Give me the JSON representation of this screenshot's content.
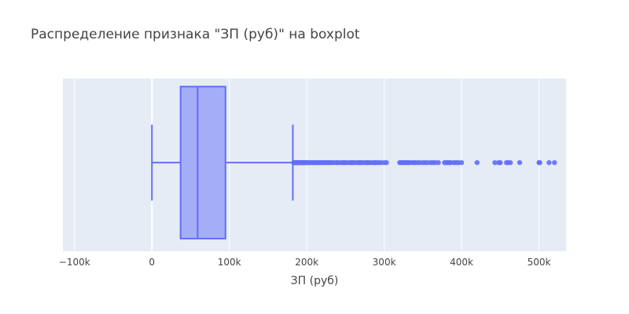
{
  "chart_data": {
    "type": "box",
    "title": "Распределение признака \"ЗП (руб)\" на boxplot",
    "xlabel": "ЗП (руб)",
    "ylabel": "",
    "xlim": [
      -115000,
      535000
    ],
    "xticks": [
      -100000,
      0,
      100000,
      200000,
      300000,
      400000,
      500000
    ],
    "xtick_labels": [
      "−100k",
      "0",
      "100k",
      "200k",
      "300k",
      "400k",
      "500k"
    ],
    "grid": true,
    "orientation": "horizontal",
    "box": {
      "min": 0,
      "q1": 37000,
      "median": 59000,
      "q3": 95000,
      "upper_fence": 182000
    },
    "outliers": [
      183000,
      184000,
      185000,
      186000,
      187000,
      188000,
      189000,
      190000,
      191000,
      192000,
      193000,
      194000,
      195000,
      196000,
      197000,
      198000,
      199000,
      200000,
      202000,
      204000,
      206000,
      208000,
      210000,
      212000,
      214000,
      216000,
      218000,
      220000,
      222000,
      224000,
      226000,
      228000,
      230000,
      232000,
      235000,
      238000,
      240000,
      243000,
      246000,
      248000,
      250000,
      253000,
      256000,
      258000,
      260000,
      263000,
      266000,
      268000,
      270000,
      273000,
      276000,
      278000,
      280000,
      283000,
      286000,
      288000,
      290000,
      293000,
      296000,
      300000,
      303000,
      320000,
      322000,
      324000,
      326000,
      328000,
      330000,
      332000,
      335000,
      338000,
      340000,
      343000,
      346000,
      350000,
      353000,
      356000,
      360000,
      363000,
      366000,
      370000,
      378000,
      380000,
      382000,
      384000,
      386000,
      390000,
      393000,
      396000,
      400000,
      420000,
      443000,
      448000,
      450000,
      458000,
      460000,
      463000,
      475000,
      500000,
      501000,
      513000,
      520000
    ],
    "colors": {
      "line": "#636efa",
      "fill": "rgba(99,110,250,0.5)",
      "plot_bg": "#e5ecf6",
      "grid": "#ffffff"
    }
  }
}
